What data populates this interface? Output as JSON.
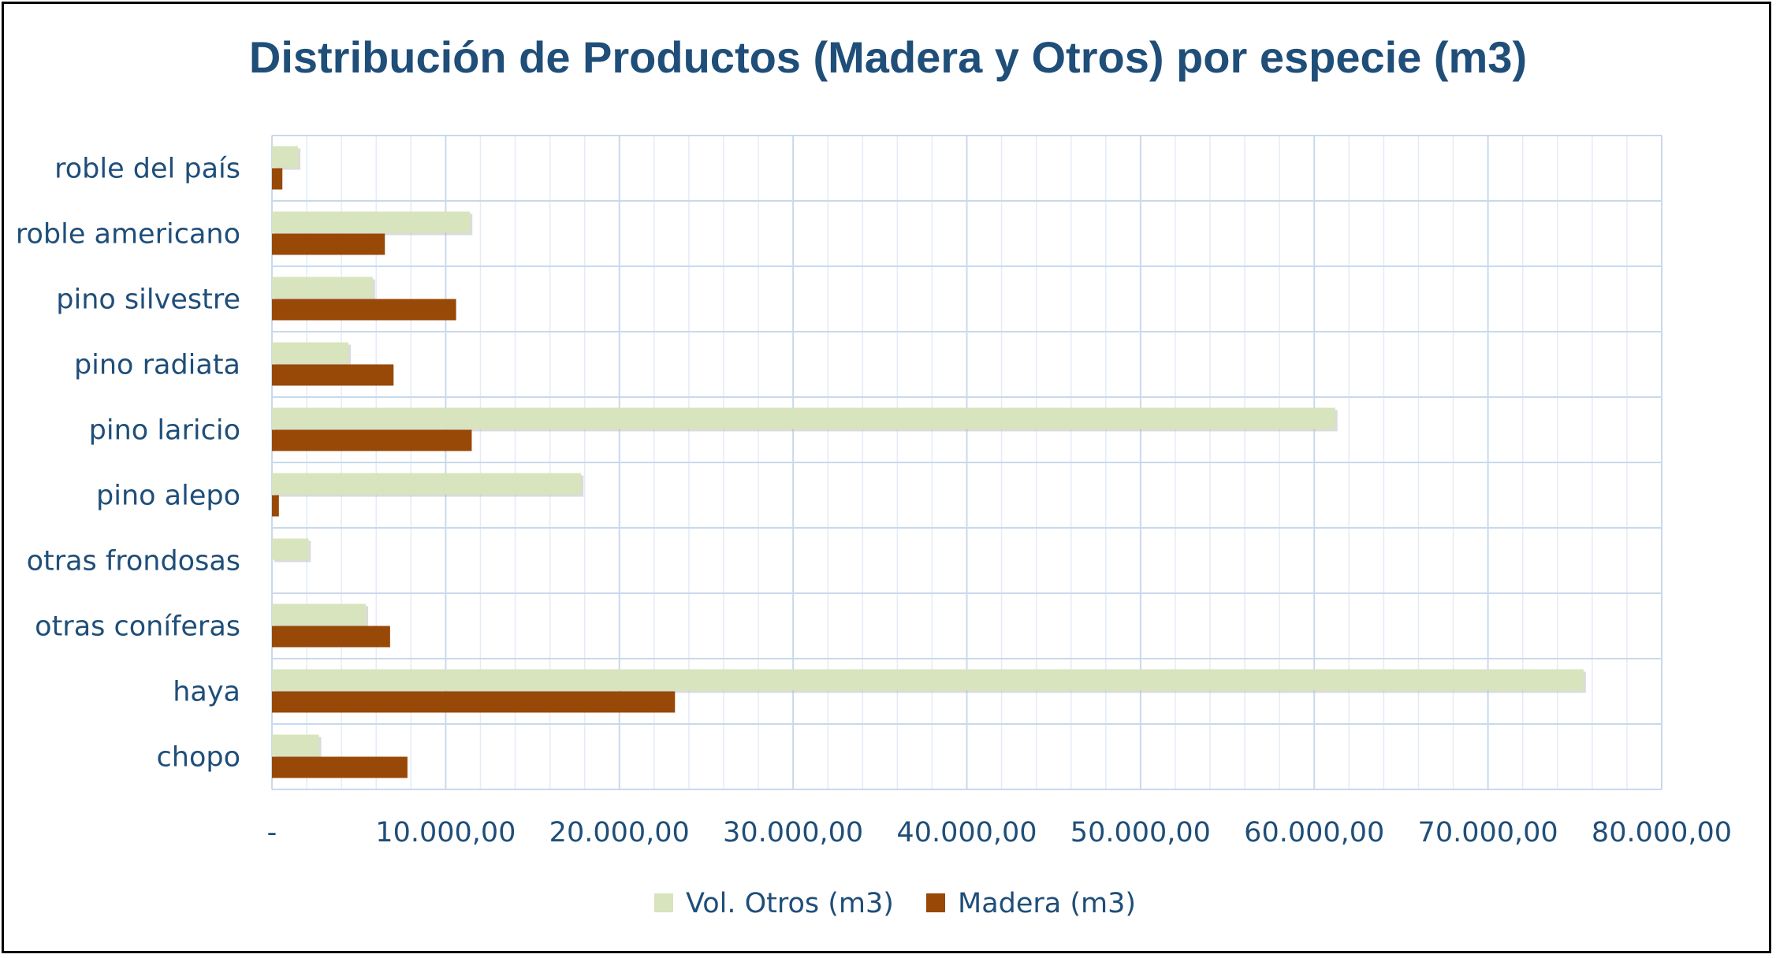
{
  "chart_data": {
    "type": "bar",
    "orientation": "horizontal",
    "title": "Distribución de Productos (Madera y Otros) por especie (m3)",
    "categories": [
      "chopo",
      "haya",
      "otras coníferas",
      "otras frondosas",
      "pino alepo",
      "pino laricio",
      "pino radiata",
      "pino silvestre",
      "roble americano",
      "roble del país"
    ],
    "series": [
      {
        "name": "Vol. Otros (m3)",
        "color": "#d7e4bd",
        "values": [
          2700,
          75500,
          5400,
          2100,
          17800,
          61200,
          4400,
          5800,
          11400,
          1500
        ]
      },
      {
        "name": "Madera (m3)",
        "color": "#984807",
        "values": [
          7800,
          23200,
          6800,
          0,
          400,
          11500,
          7000,
          10600,
          6500,
          600
        ]
      }
    ],
    "xlim": [
      0,
      80000
    ],
    "x_ticks": [
      {
        "value": 0,
        "label": "-"
      },
      {
        "value": 10000,
        "label": "10.000,00"
      },
      {
        "value": 20000,
        "label": "20.000,00"
      },
      {
        "value": 30000,
        "label": "30.000,00"
      },
      {
        "value": 40000,
        "label": "40.000,00"
      },
      {
        "value": 50000,
        "label": "50.000,00"
      },
      {
        "value": 60000,
        "label": "60.000,00"
      },
      {
        "value": 70000,
        "label": "70.000,00"
      },
      {
        "value": 80000,
        "label": "80.000,00"
      }
    ],
    "grid": true,
    "legend_position": "bottom",
    "category_order": "bottom-to-top"
  }
}
